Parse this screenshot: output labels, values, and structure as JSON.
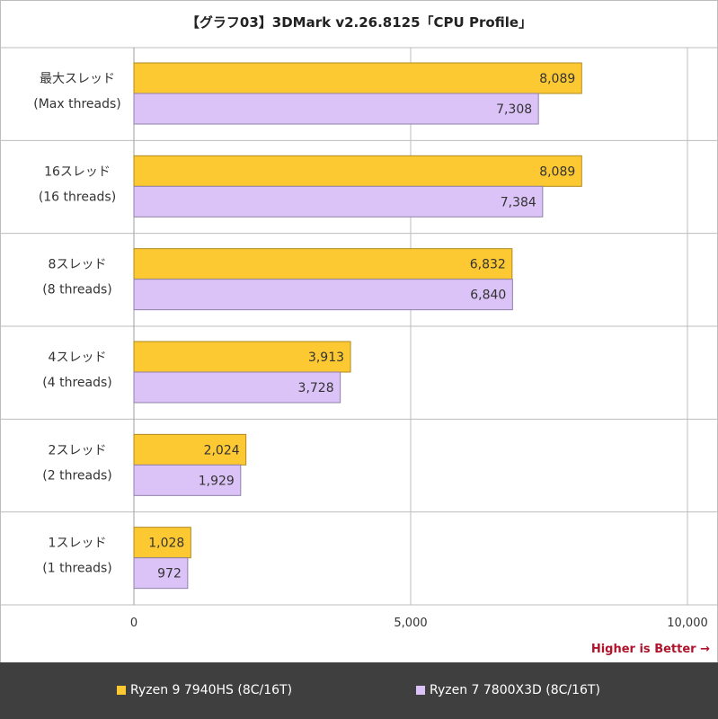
{
  "title": "【グラフ03】3DMark v2.26.8125「CPU Profile」",
  "footnote": "Higher is Better →",
  "colors": {
    "series_0": "#fdc933",
    "series_0_stroke": "#b08a1e",
    "series_1": "#dbc3f7",
    "series_1_stroke": "#8f80a8",
    "footnote": "#b0142c",
    "legend_bg": "#3f3f3f"
  },
  "chart_data": {
    "type": "bar",
    "orientation": "horizontal",
    "title": "【グラフ03】3DMark v2.26.8125「CPU Profile」",
    "categories": [
      [
        "最大スレッド",
        "(Max threads)"
      ],
      [
        "16スレッド",
        "(16 threads)"
      ],
      [
        "8スレッド",
        "(8 threads)"
      ],
      [
        "4スレッド",
        "(4 threads)"
      ],
      [
        "2スレッド",
        "(2 threads)"
      ],
      [
        "1スレッド",
        "(1 threads)"
      ]
    ],
    "series": [
      {
        "name": "Ryzen 9 7940HS (8C/16T)",
        "values": [
          8089,
          8089,
          6832,
          3913,
          2024,
          1028
        ],
        "labels": [
          "8,089",
          "8,089",
          "6,832",
          "3,913",
          "2,024",
          "1,028"
        ]
      },
      {
        "name": "Ryzen 7 7800X3D (8C/16T)",
        "values": [
          7308,
          7384,
          6840,
          3728,
          1929,
          972
        ],
        "labels": [
          "7,308",
          "7,384",
          "6,840",
          "3,728",
          "1,929",
          "972"
        ]
      }
    ],
    "xlim": [
      0,
      10000
    ],
    "xticks": [
      0,
      5000,
      10000
    ],
    "xtick_labels": [
      "0",
      "5,000",
      "10,000"
    ],
    "grid": true,
    "legend_position": "bottom"
  }
}
